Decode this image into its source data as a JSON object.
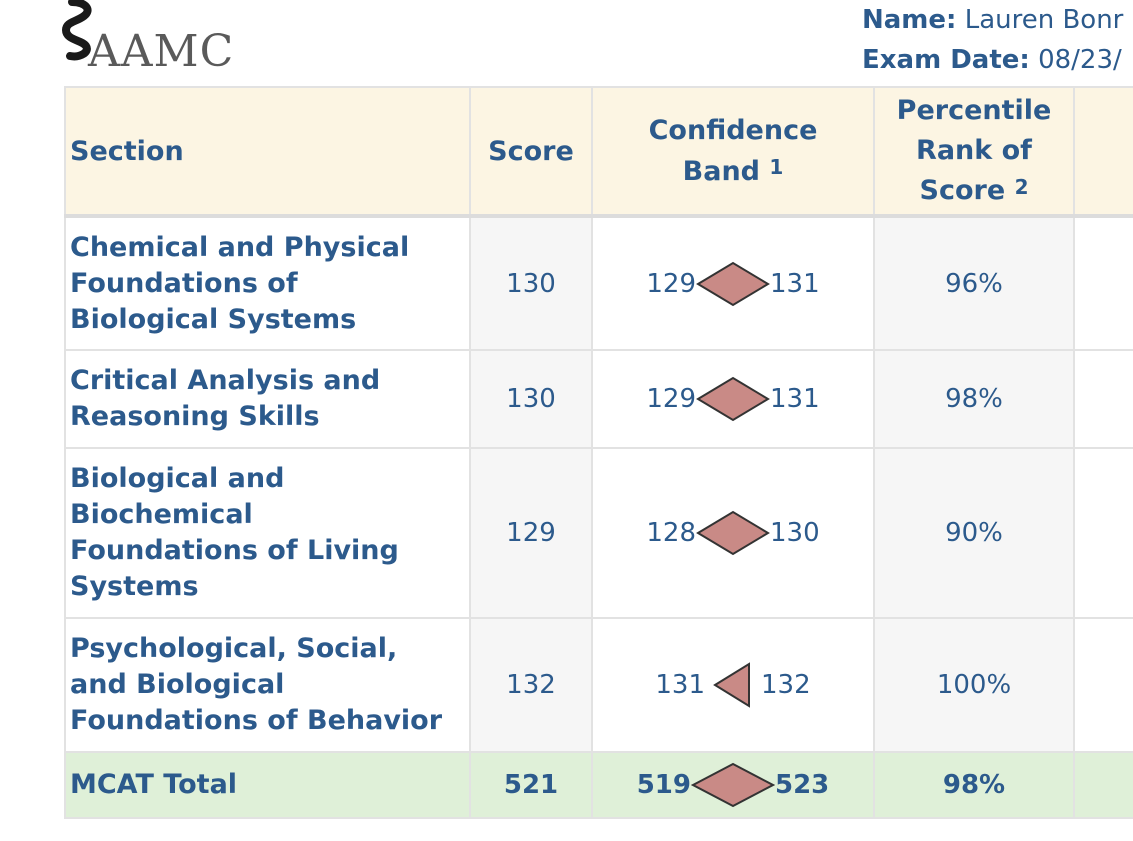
{
  "header": {
    "logo_text": "AAMC",
    "name_label": "Name:",
    "name_value": "Lauren Bonr",
    "exam_date_label": "Exam Date:",
    "exam_date_value": "08/23/"
  },
  "table": {
    "columns": {
      "section": "Section",
      "score": "Score",
      "band_line1": "Confidence",
      "band_line2": "Band",
      "band_sup": "1",
      "pct_line1": "Percentile",
      "pct_line2": "Rank of",
      "pct_line3": "Score",
      "pct_sup": "2"
    },
    "rows": [
      {
        "section_l1": "Chemical and Physical",
        "section_l2": "Foundations of",
        "section_l3": "Biological Systems",
        "section_l4": "",
        "score": "130",
        "band_low": "129",
        "band_high": "131",
        "band_shape": "diamond",
        "percentile": "96%"
      },
      {
        "section_l1": "Critical Analysis and",
        "section_l2": "Reasoning Skills",
        "section_l3": "",
        "section_l4": "",
        "score": "130",
        "band_low": "129",
        "band_high": "131",
        "band_shape": "diamond",
        "percentile": "98%"
      },
      {
        "section_l1": "Biological and",
        "section_l2": "Biochemical",
        "section_l3": "Foundations of Living",
        "section_l4": "Systems",
        "score": "129",
        "band_low": "128",
        "band_high": "130",
        "band_shape": "diamond",
        "percentile": "90%"
      },
      {
        "section_l1": "Psychological, Social,",
        "section_l2": "and Biological",
        "section_l3": "Foundations of Behavior",
        "section_l4": "",
        "score": "132",
        "band_low": "131",
        "band_high": "132",
        "band_shape": "left-triangle",
        "percentile": "100%"
      }
    ],
    "total": {
      "section": "MCAT Total",
      "score": "521",
      "band_low": "519",
      "band_high": "523",
      "band_shape": "diamond",
      "percentile": "98%"
    }
  },
  "colors": {
    "text": "#2c5a8c",
    "header_bg": "#fcf5e3",
    "total_bg": "#dff0d8",
    "marker_fill": "#c98a86",
    "marker_stroke": "#333333"
  }
}
